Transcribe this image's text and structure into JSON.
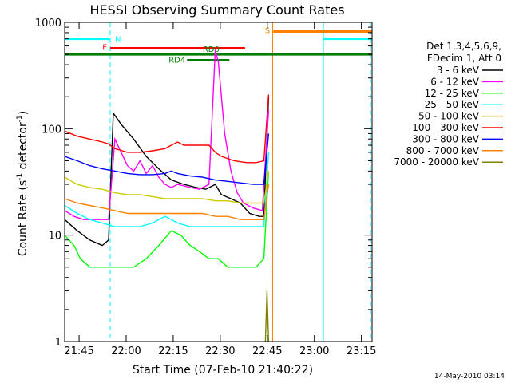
{
  "chart_data": {
    "type": "line",
    "title": "HESSI Observing Summary Count Rates",
    "xlabel": "Start Time (07-Feb-10 21:40:22)",
    "ylabel_main": "Count Rate (s",
    "ylabel_sup1": "-1",
    "ylabel_mid": " detector",
    "ylabel_sup2": "-1",
    "ylabel_end": ")",
    "yscale": "log",
    "ylim": [
      1,
      1000
    ],
    "xlim_minutes": [
      0,
      98
    ],
    "x_ticks": [
      {
        "label": "21:45",
        "min": 4.6
      },
      {
        "label": "22:00",
        "min": 19.6
      },
      {
        "label": "22:15",
        "min": 34.6
      },
      {
        "label": "22:30",
        "min": 49.6
      },
      {
        "label": "22:45",
        "min": 64.6
      },
      {
        "label": "23:00",
        "min": 79.6
      },
      {
        "label": "23:15",
        "min": 94.6
      }
    ],
    "y_ticks": [
      {
        "label": "1",
        "v": 1
      },
      {
        "label": "10",
        "v": 10
      },
      {
        "label": "100",
        "v": 100
      },
      {
        "label": "1000",
        "v": 1000
      }
    ],
    "legend_header": [
      "Det 1,3,4,5,6,9,",
      "FDecim 1, Att 0"
    ],
    "legend_position": "right",
    "series": [
      {
        "name": "3 - 6 keV",
        "color": "#000000",
        "points": [
          [
            0,
            14
          ],
          [
            4,
            11
          ],
          [
            8,
            9
          ],
          [
            12,
            8
          ],
          [
            14,
            9
          ],
          [
            15.5,
            140
          ],
          [
            18,
            110
          ],
          [
            22,
            80
          ],
          [
            26,
            55
          ],
          [
            30,
            42
          ],
          [
            34,
            33
          ],
          [
            38,
            30
          ],
          [
            42,
            28
          ],
          [
            45,
            27
          ],
          [
            48,
            30
          ],
          [
            50,
            24
          ],
          [
            53,
            22
          ],
          [
            56,
            20
          ],
          [
            59,
            16
          ],
          [
            62,
            15
          ],
          [
            63.5,
            15
          ],
          [
            65,
            200
          ]
        ]
      },
      {
        "name": "6 - 12 keV",
        "color": "#ff00ff",
        "points": [
          [
            0,
            17
          ],
          [
            3,
            15
          ],
          [
            6,
            14
          ],
          [
            10,
            14
          ],
          [
            13,
            14
          ],
          [
            14,
            14
          ],
          [
            16,
            80
          ],
          [
            18,
            60
          ],
          [
            20,
            45
          ],
          [
            22,
            40
          ],
          [
            24,
            50
          ],
          [
            26,
            38
          ],
          [
            28,
            45
          ],
          [
            30,
            35
          ],
          [
            32,
            30
          ],
          [
            34,
            28
          ],
          [
            36,
            30
          ],
          [
            38,
            29
          ],
          [
            40,
            28
          ],
          [
            43,
            27
          ],
          [
            46,
            30
          ],
          [
            48,
            550
          ],
          [
            49,
            420
          ],
          [
            51,
            90
          ],
          [
            53,
            40
          ],
          [
            55,
            25
          ],
          [
            57,
            20
          ],
          [
            60,
            18
          ],
          [
            63,
            17
          ],
          [
            65,
            150
          ]
        ]
      },
      {
        "name": "12 - 25 keV",
        "color": "#00ff00",
        "points": [
          [
            0,
            10
          ],
          [
            3,
            8
          ],
          [
            5,
            6
          ],
          [
            8,
            5
          ],
          [
            12,
            5
          ],
          [
            15,
            5
          ],
          [
            18,
            5
          ],
          [
            22,
            5
          ],
          [
            26,
            6
          ],
          [
            30,
            8
          ],
          [
            34,
            11
          ],
          [
            37,
            10
          ],
          [
            40,
            8
          ],
          [
            43,
            7
          ],
          [
            46,
            6
          ],
          [
            49,
            6
          ],
          [
            52,
            5
          ],
          [
            55,
            5
          ],
          [
            58,
            5
          ],
          [
            61,
            5
          ],
          [
            63.5,
            6
          ],
          [
            65,
            40
          ]
        ]
      },
      {
        "name": "25 - 50 keV",
        "color": "#00ffff",
        "points": [
          [
            0,
            19
          ],
          [
            4,
            16
          ],
          [
            8,
            14
          ],
          [
            12,
            13
          ],
          [
            16,
            12
          ],
          [
            20,
            12
          ],
          [
            24,
            12
          ],
          [
            28,
            13
          ],
          [
            32,
            15
          ],
          [
            34,
            14
          ],
          [
            36,
            13
          ],
          [
            40,
            12
          ],
          [
            44,
            12
          ],
          [
            48,
            12
          ],
          [
            52,
            12
          ],
          [
            56,
            12
          ],
          [
            60,
            12
          ],
          [
            63.5,
            12
          ],
          [
            65,
            60
          ]
        ]
      },
      {
        "name": "50 - 100 keV",
        "color": "#cccc00",
        "points": [
          [
            0,
            35
          ],
          [
            4,
            30
          ],
          [
            8,
            28
          ],
          [
            12,
            27
          ],
          [
            16,
            25
          ],
          [
            20,
            24
          ],
          [
            24,
            24
          ],
          [
            28,
            23
          ],
          [
            32,
            22
          ],
          [
            36,
            22
          ],
          [
            40,
            22
          ],
          [
            44,
            22
          ],
          [
            48,
            21
          ],
          [
            52,
            21
          ],
          [
            56,
            20
          ],
          [
            60,
            20
          ],
          [
            63.5,
            20
          ],
          [
            65,
            40
          ]
        ]
      },
      {
        "name": "100 - 300 keV",
        "color": "#ff0000",
        "points": [
          [
            0,
            95
          ],
          [
            4,
            85
          ],
          [
            8,
            80
          ],
          [
            12,
            75
          ],
          [
            14,
            72
          ],
          [
            16,
            65
          ],
          [
            20,
            60
          ],
          [
            24,
            60
          ],
          [
            28,
            62
          ],
          [
            32,
            65
          ],
          [
            34,
            70
          ],
          [
            36,
            75
          ],
          [
            38,
            70
          ],
          [
            42,
            70
          ],
          [
            46,
            70
          ],
          [
            48,
            60
          ],
          [
            50,
            55
          ],
          [
            54,
            50
          ],
          [
            58,
            48
          ],
          [
            61,
            48
          ],
          [
            63.5,
            50
          ],
          [
            65,
            210
          ]
        ]
      },
      {
        "name": "300 - 800 keV",
        "color": "#0000ff",
        "points": [
          [
            0,
            55
          ],
          [
            4,
            50
          ],
          [
            8,
            45
          ],
          [
            12,
            42
          ],
          [
            16,
            40
          ],
          [
            20,
            38
          ],
          [
            24,
            37
          ],
          [
            28,
            37
          ],
          [
            32,
            38
          ],
          [
            34,
            40
          ],
          [
            36,
            38
          ],
          [
            40,
            36
          ],
          [
            44,
            35
          ],
          [
            48,
            33
          ],
          [
            52,
            32
          ],
          [
            56,
            31
          ],
          [
            60,
            30
          ],
          [
            63.5,
            30
          ],
          [
            65,
            90
          ]
        ]
      },
      {
        "name": "800 - 7000 keV",
        "color": "#ff8000",
        "points": [
          [
            0,
            22
          ],
          [
            4,
            20
          ],
          [
            8,
            19
          ],
          [
            12,
            18
          ],
          [
            16,
            17
          ],
          [
            20,
            16
          ],
          [
            24,
            16
          ],
          [
            28,
            16
          ],
          [
            32,
            16
          ],
          [
            36,
            16
          ],
          [
            40,
            16
          ],
          [
            44,
            16
          ],
          [
            48,
            15
          ],
          [
            52,
            15
          ],
          [
            56,
            14
          ],
          [
            60,
            14
          ],
          [
            63.5,
            14
          ],
          [
            65,
            30
          ]
        ]
      },
      {
        "name": "7000 - 20000 keV",
        "color": "#808000",
        "points": [
          [
            64,
            1
          ],
          [
            64.5,
            3
          ],
          [
            65,
            1
          ]
        ]
      }
    ],
    "flag_bars": [
      {
        "label": "N",
        "color": "#00ffff",
        "segments": [
          [
            0,
            14.5
          ],
          [
            82.5,
            98
          ]
        ],
        "v": 700
      },
      {
        "label": "F",
        "color": "#ff0000",
        "segments": [
          [
            14.5,
            57.5
          ]
        ],
        "v": 570
      },
      {
        "label": "RD0",
        "color": "#008000",
        "segments": [
          [
            0,
            98
          ]
        ],
        "v": 500
      },
      {
        "label": "RD4",
        "color": "#008000",
        "segments": [
          [
            39,
            52.5
          ]
        ],
        "v": 440
      },
      {
        "label": "S",
        "color": "#ff8000",
        "segments": [
          [
            66.5,
            98
          ]
        ],
        "v": 820
      }
    ],
    "vertical_markers": [
      {
        "min": 14.5,
        "color": "#00ffff",
        "style": "dashed"
      },
      {
        "min": 66.3,
        "color": "#ff8000",
        "style": "solid"
      },
      {
        "min": 82.5,
        "color": "#00ffff",
        "style": "solid"
      },
      {
        "min": 97.5,
        "color": "#00ffff",
        "style": "dashed"
      }
    ],
    "footer_timestamp": "14-May-2010 03:14"
  }
}
